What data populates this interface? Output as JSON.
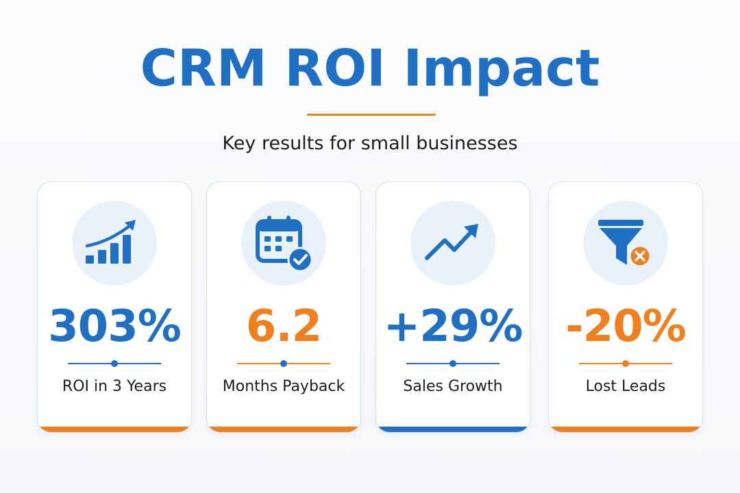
{
  "title": "CRM ROI Impact",
  "subtitle": "Key results for small businesses",
  "colors": {
    "blue": "#1f6fc5",
    "orange": "#f07f1e",
    "icon_bg": "#e9f1fa"
  },
  "cards": [
    {
      "icon": "bar-chart-growth-icon",
      "value": "303%",
      "label": "ROI in 3 Years",
      "value_color": "#1f6fc5",
      "accent_color": "#f07f1e"
    },
    {
      "icon": "calendar-check-icon",
      "value": "6.2",
      "label": "Months Payback",
      "value_color": "#f07f1e",
      "accent_color": "#f07f1e"
    },
    {
      "icon": "trend-up-arrow-icon",
      "value": "+29%",
      "label": "Sales Growth",
      "value_color": "#1f6fc5",
      "accent_color": "#1f6fc5"
    },
    {
      "icon": "funnel-x-icon",
      "value": "-20%",
      "label": "Lost Leads",
      "value_color": "#f07f1e",
      "accent_color": "#f07f1e"
    }
  ]
}
